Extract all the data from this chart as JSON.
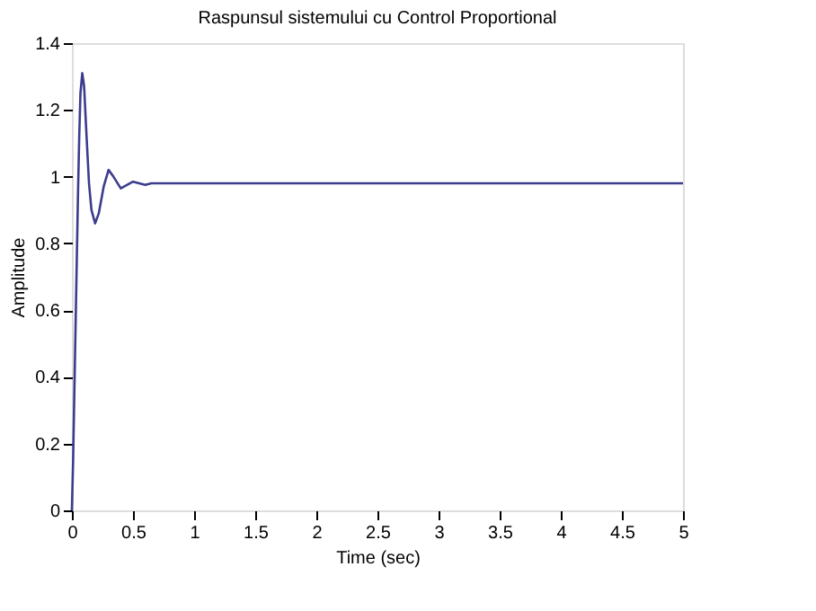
{
  "chart_data": {
    "type": "line",
    "title": "Raspunsul sistemului cu Control Proportional",
    "xlabel": "Time (sec)",
    "ylabel": "Amplitude",
    "x": [
      0,
      0.01,
      0.02,
      0.03,
      0.04,
      0.05,
      0.06,
      0.07,
      0.085,
      0.1,
      0.12,
      0.14,
      0.16,
      0.19,
      0.22,
      0.26,
      0.3,
      0.34,
      0.4,
      0.45,
      0.5,
      0.55,
      0.6,
      0.65,
      5
    ],
    "series": [
      {
        "color": "#3c3c8e",
        "values": [
          0,
          0.15,
          0.35,
          0.55,
          0.75,
          0.95,
          1.12,
          1.25,
          1.31,
          1.27,
          1.12,
          0.98,
          0.9,
          0.86,
          0.89,
          0.97,
          1.02,
          1.0,
          0.965,
          0.975,
          0.985,
          0.98,
          0.975,
          0.98,
          0.98
        ]
      }
    ],
    "xlim": [
      0,
      5
    ],
    "xticks": [
      0,
      0.5,
      1,
      1.5,
      2,
      2.5,
      3,
      3.5,
      4,
      4.5,
      5
    ],
    "ylim": [
      0,
      1.4
    ],
    "yticks": [
      0,
      0.2,
      0.4,
      0.6,
      0.8,
      1,
      1.2,
      1.4
    ],
    "grid": false,
    "legend": false
  }
}
